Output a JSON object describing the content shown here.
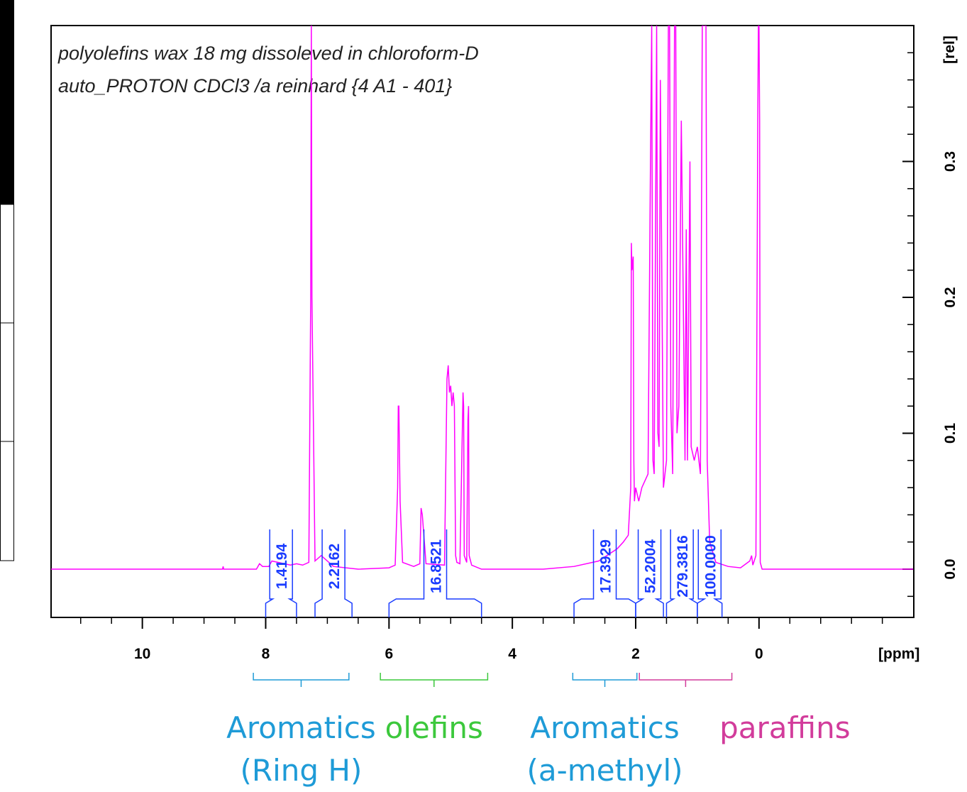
{
  "chart_data": {
    "type": "line",
    "title_lines": [
      "polyolefins wax 18 mg dissoleved in chloroform-D",
      "auto_PROTON CDCl3 /a reinhard {4  A1 - 401}"
    ],
    "xlabel": "[ppm]",
    "ylabel": "[rel]",
    "xlim": [
      11.48,
      -2.51
    ],
    "xticks": [
      10,
      8,
      6,
      4,
      2,
      0
    ],
    "xminorticks": [
      11,
      10.5,
      9.5,
      9,
      8.5,
      7.5,
      7,
      6.5,
      5.5,
      5,
      4.5,
      3.5,
      3,
      2.5,
      1.5,
      1,
      0.5,
      -0.5,
      -1,
      -1.5,
      -2
    ],
    "ylim": [
      -0.0355,
      0.4
    ],
    "yticks": [
      {
        "value": 0,
        "label": "0.0"
      },
      {
        "value": 0.1,
        "label": "0.1"
      },
      {
        "value": 0.2,
        "label": "0.2"
      },
      {
        "value": 0.3,
        "label": "0.3"
      }
    ],
    "yminorticks": [
      -0.02,
      0.02,
      0.04,
      0.06,
      0.08,
      0.12,
      0.14,
      0.16,
      0.18,
      0.22,
      0.24,
      0.26,
      0.28,
      0.32,
      0.34,
      0.36,
      0.38
    ],
    "x": [
      11.5,
      8.7,
      8.69,
      8.68,
      8.15,
      8.1,
      8.05,
      7.95,
      7.9,
      7.6,
      7.5,
      7.4,
      7.3,
      7.27,
      7.26,
      7.25,
      7.2,
      7.1,
      6.9,
      6.5,
      6.0,
      5.9,
      5.86,
      5.85,
      5.84,
      5.82,
      5.78,
      5.6,
      5.5,
      5.48,
      5.46,
      5.4,
      5.1,
      5.06,
      5.04,
      5.02,
      5.0,
      4.98,
      4.96,
      4.94,
      4.92,
      4.9,
      4.85,
      4.8,
      4.79,
      4.78,
      4.74,
      4.72,
      4.71,
      4.7,
      4.66,
      4.5,
      3.5,
      3.0,
      2.6,
      2.4,
      2.3,
      2.2,
      2.12,
      2.08,
      2.07,
      2.06,
      2.04,
      2.03,
      2.02,
      2.0,
      1.95,
      1.9,
      1.8,
      1.76,
      1.74,
      1.72,
      1.7,
      1.66,
      1.64,
      1.62,
      1.6,
      1.55,
      1.5,
      1.47,
      1.45,
      1.43,
      1.4,
      1.37,
      1.35,
      1.33,
      1.3,
      1.26,
      1.2,
      1.18,
      1.16,
      1.12,
      1.1,
      1.05,
      1.0,
      0.95,
      0.92,
      0.9,
      0.88,
      0.86,
      0.84,
      0.8,
      0.7,
      0.5,
      0.3,
      0.15,
      0.12,
      0.1,
      0.05,
      0.02,
      0.01,
      0.0,
      -0.01,
      -0.02,
      -0.05,
      -2.5
    ],
    "series": [
      {
        "color": "#ff00ff",
        "values": [
          0,
          0,
          0.002,
          0,
          0,
          0.004,
          0.002,
          0.002,
          0.006,
          0.003,
          0.004,
          0.003,
          0.005,
          0.2,
          0.4,
          0.2,
          0.006,
          0.01,
          0.002,
          0,
          0.001,
          0.003,
          0.06,
          0.12,
          0.12,
          0.05,
          0.005,
          0.002,
          0.004,
          0.045,
          0.04,
          0.004,
          0.003,
          0.14,
          0.15,
          0.13,
          0.135,
          0.12,
          0.13,
          0.12,
          0.01,
          0.005,
          0.004,
          0.13,
          0.12,
          0.01,
          0.005,
          0.11,
          0.12,
          0.01,
          0.003,
          0,
          0,
          0.002,
          0.006,
          0.012,
          0.015,
          0.02,
          0.025,
          0.06,
          0.24,
          0.22,
          0.23,
          0.08,
          0.05,
          0.06,
          0.05,
          0.06,
          0.07,
          0.3,
          0.4,
          0.08,
          0.07,
          0.4,
          0.1,
          0.09,
          0.36,
          0.06,
          0.08,
          0.4,
          0.4,
          0.12,
          0.07,
          0.4,
          0.4,
          0.1,
          0.12,
          0.33,
          0.08,
          0.25,
          0.08,
          0.3,
          0.09,
          0.08,
          0.09,
          0.07,
          0.4,
          0.4,
          0.4,
          0.4,
          0.08,
          0.02,
          0.005,
          0.002,
          0.001,
          0.006,
          0.01,
          0.003,
          0.01,
          0.33,
          0.4,
          0.4,
          0.33,
          0.005,
          0,
          0
        ]
      }
    ],
    "integrals": {
      "color": "#1a3cff",
      "ranges": [
        [
          8.0,
          7.5
        ],
        [
          7.2,
          6.6
        ],
        [
          6.0,
          4.5
        ],
        [
          3.0,
          2.0
        ],
        [
          2.0,
          1.55
        ],
        [
          1.5,
          1.0
        ],
        [
          1.0,
          0.6
        ]
      ],
      "values": [
        1.4194,
        2.2162,
        16.8521,
        17.3929,
        52.2004,
        279.3816,
        100
      ],
      "value_labels": [
        "1.4194",
        "2.2162",
        "16.8521",
        "17.3929",
        "52.2004",
        "279.3816",
        "100.0000"
      ]
    },
    "annotations": [
      {
        "lines": [
          "Aromatics",
          "(Ring H)"
        ],
        "range": [
          8.2,
          6.65
        ],
        "color": "#1e9bd7"
      },
      {
        "lines": [
          "olefins"
        ],
        "range": [
          6.14,
          4.4
        ],
        "color": "#3cc83c"
      },
      {
        "lines": [
          "Aromatics",
          "(a-methyl)"
        ],
        "range": [
          3.02,
          1.98
        ],
        "color": "#1e9bd7"
      },
      {
        "lines": [
          "paraffins"
        ],
        "range": [
          1.94,
          0.44
        ],
        "color": "#d23c9b"
      }
    ]
  }
}
